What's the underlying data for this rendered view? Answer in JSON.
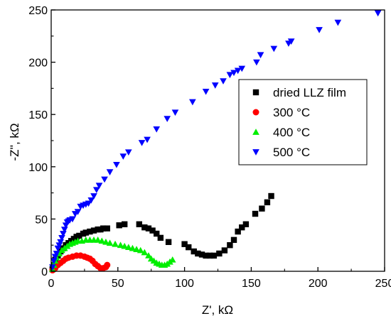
{
  "chart_data": {
    "type": "scatter",
    "title": "",
    "xlabel": "Z', kΩ",
    "ylabel": "-Z'', kΩ",
    "xlim": [
      0,
      250
    ],
    "ylim": [
      0,
      250
    ],
    "xticks": [
      0,
      50,
      100,
      150,
      200,
      250
    ],
    "yticks": [
      0,
      50,
      100,
      150,
      200,
      250
    ],
    "grid": false,
    "legend_position": "top-right",
    "series": [
      {
        "name": "dried LLZ film",
        "marker": "square",
        "color": "#000000",
        "points": [
          [
            1,
            2
          ],
          [
            2,
            6
          ],
          [
            3,
            11
          ],
          [
            5,
            15
          ],
          [
            7,
            19
          ],
          [
            9,
            22
          ],
          [
            11,
            25
          ],
          [
            13,
            27
          ],
          [
            15,
            29
          ],
          [
            17,
            31
          ],
          [
            19,
            33
          ],
          [
            21,
            34
          ],
          [
            24,
            36
          ],
          [
            26,
            37
          ],
          [
            29,
            38
          ],
          [
            32,
            39
          ],
          [
            35,
            40
          ],
          [
            37,
            40
          ],
          [
            39,
            41
          ],
          [
            42,
            41
          ],
          [
            51,
            44
          ],
          [
            55,
            45
          ],
          [
            66,
            45
          ],
          [
            70,
            42
          ],
          [
            73,
            41
          ],
          [
            76,
            39
          ],
          [
            79,
            36
          ],
          [
            82,
            32
          ],
          [
            88,
            28
          ],
          [
            100,
            26
          ],
          [
            103,
            23
          ],
          [
            107,
            19
          ],
          [
            110,
            17
          ],
          [
            113,
            16
          ],
          [
            116,
            15
          ],
          [
            119,
            15
          ],
          [
            122,
            15
          ],
          [
            126,
            17
          ],
          [
            130,
            20
          ],
          [
            134,
            25
          ],
          [
            137,
            30
          ],
          [
            140,
            38
          ],
          [
            143,
            42
          ],
          [
            146,
            45
          ],
          [
            153,
            55
          ],
          [
            158,
            60
          ],
          [
            162,
            66
          ],
          [
            165,
            72
          ]
        ]
      },
      {
        "name": "300 °C",
        "marker": "circle",
        "color": "#ff0000",
        "points": [
          [
            1,
            1
          ],
          [
            3,
            3
          ],
          [
            5,
            6
          ],
          [
            7,
            8
          ],
          [
            9,
            10
          ],
          [
            11,
            12
          ],
          [
            13,
            13
          ],
          [
            16,
            14
          ],
          [
            19,
            15
          ],
          [
            22,
            15
          ],
          [
            25,
            14
          ],
          [
            27,
            13
          ],
          [
            29,
            12
          ],
          [
            31,
            10
          ],
          [
            33,
            7
          ],
          [
            35,
            5
          ],
          [
            37,
            3
          ],
          [
            39,
            3
          ],
          [
            41,
            4
          ],
          [
            42,
            6
          ]
        ]
      },
      {
        "name": "400 °C",
        "marker": "triangle-up",
        "color": "#00ee00",
        "points": [
          [
            1,
            2
          ],
          [
            2,
            6
          ],
          [
            3,
            10
          ],
          [
            4,
            13
          ],
          [
            6,
            17
          ],
          [
            8,
            20
          ],
          [
            10,
            22
          ],
          [
            12,
            24
          ],
          [
            14,
            26
          ],
          [
            16,
            27
          ],
          [
            18,
            28
          ],
          [
            20,
            29
          ],
          [
            23,
            29
          ],
          [
            26,
            30
          ],
          [
            29,
            30
          ],
          [
            32,
            30
          ],
          [
            35,
            30
          ],
          [
            38,
            29
          ],
          [
            41,
            28
          ],
          [
            44,
            27
          ],
          [
            48,
            26
          ],
          [
            52,
            25
          ],
          [
            55,
            24
          ],
          [
            58,
            23
          ],
          [
            61,
            22
          ],
          [
            64,
            21
          ],
          [
            67,
            20
          ],
          [
            70,
            18
          ],
          [
            73,
            15
          ],
          [
            75,
            12
          ],
          [
            77,
            10
          ],
          [
            79,
            8
          ],
          [
            81,
            7
          ],
          [
            83,
            6
          ],
          [
            85,
            6
          ],
          [
            87,
            7
          ],
          [
            89,
            9
          ],
          [
            91,
            11
          ]
        ]
      },
      {
        "name": "500 °C",
        "marker": "triangle-down",
        "color": "#0000ff",
        "points": [
          [
            1,
            4
          ],
          [
            2,
            10
          ],
          [
            3,
            14
          ],
          [
            4,
            17
          ],
          [
            5,
            22
          ],
          [
            6,
            25
          ],
          [
            7,
            28
          ],
          [
            8,
            32
          ],
          [
            9,
            36
          ],
          [
            10,
            40
          ],
          [
            11,
            44
          ],
          [
            12,
            47
          ],
          [
            13,
            48
          ],
          [
            14,
            49
          ],
          [
            16,
            50
          ],
          [
            18,
            55
          ],
          [
            20,
            57
          ],
          [
            22,
            62
          ],
          [
            24,
            63
          ],
          [
            26,
            64
          ],
          [
            28,
            65
          ],
          [
            30,
            68
          ],
          [
            32,
            72
          ],
          [
            34,
            78
          ],
          [
            36,
            82
          ],
          [
            40,
            88
          ],
          [
            44,
            95
          ],
          [
            49,
            102
          ],
          [
            54,
            110
          ],
          [
            58,
            114
          ],
          [
            68,
            123
          ],
          [
            72,
            126
          ],
          [
            79,
            136
          ],
          [
            87,
            146
          ],
          [
            93,
            152
          ],
          [
            106,
            162
          ],
          [
            116,
            172
          ],
          [
            123,
            178
          ],
          [
            129,
            182
          ],
          [
            134,
            188
          ],
          [
            137,
            190
          ],
          [
            140,
            192
          ],
          [
            143,
            194
          ],
          [
            154,
            200
          ],
          [
            157,
            207
          ],
          [
            167,
            213
          ],
          [
            178,
            218
          ],
          [
            180,
            220
          ],
          [
            201,
            231
          ],
          [
            215,
            238
          ],
          [
            245,
            247
          ]
        ]
      }
    ]
  }
}
